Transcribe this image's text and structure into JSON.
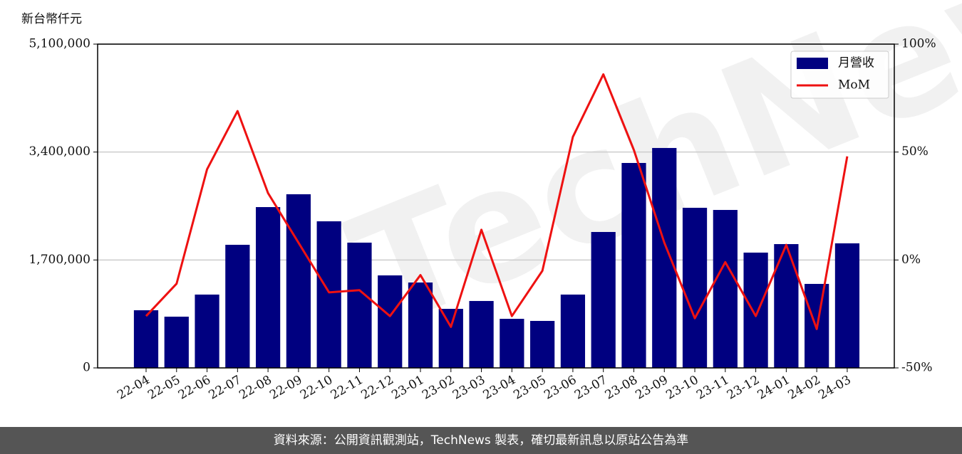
{
  "chart_data": {
    "type": "bar",
    "y_label": "新台幣仟元",
    "watermark": "TechNews",
    "categories": [
      "22-04",
      "22-05",
      "22-06",
      "22-07",
      "22-08",
      "22-09",
      "22-10",
      "22-11",
      "22-12",
      "23-01",
      "23-02",
      "23-03",
      "23-04",
      "23-05",
      "23-06",
      "23-07",
      "23-08",
      "23-09",
      "23-10",
      "23-11",
      "23-12",
      "24-01",
      "24-02",
      "24-03"
    ],
    "series": [
      {
        "name": "月營收",
        "type": "bar",
        "color": "#000080",
        "values": [
          908000,
          807000,
          1155000,
          1939000,
          2533000,
          2735000,
          2309000,
          1973000,
          1457000,
          1345000,
          930000,
          1054000,
          773000,
          740000,
          1155000,
          2141000,
          3228000,
          3464000,
          2522000,
          2488000,
          1816000,
          1950000,
          1323000,
          1962000
        ]
      },
      {
        "name": "MoM",
        "type": "line",
        "color": "#ee1111",
        "axis": "y2",
        "values": [
          -26,
          -11,
          42,
          69,
          31,
          8,
          -15,
          -14,
          -26,
          -7,
          -31,
          14,
          -26,
          -5,
          57,
          86,
          51,
          8,
          -27,
          -1,
          -26,
          7,
          -32,
          48
        ]
      }
    ],
    "ylim": [
      0,
      5100000
    ],
    "yticks": [
      0,
      {
        "value": 1700000,
        "label": "1,700,000"
      },
      {
        "value": 3400000,
        "label": "3,400,000"
      },
      {
        "value": 5100000,
        "label": "5,100,000"
      }
    ],
    "y2lim": [
      -50,
      100
    ],
    "y2ticks": [
      {
        "value": -50,
        "label": "-50%"
      },
      {
        "value": 0,
        "label": "0%"
      },
      {
        "value": 50,
        "label": "50%"
      },
      {
        "value": 100,
        "label": "100%"
      }
    ],
    "grid": true,
    "legend": "upper-right"
  },
  "footer": {
    "source": "資料來源：公開資訊觀測站，TechNews 製表，確切最新訊息以原站公告為準"
  }
}
